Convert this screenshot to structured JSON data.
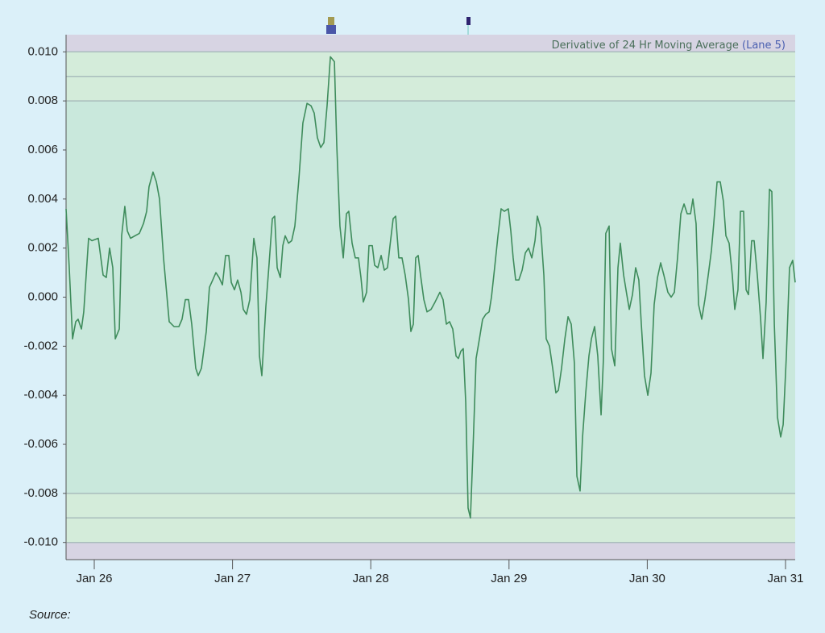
{
  "chart_data": {
    "type": "line",
    "title": "Derivative of 24 Hr Moving Average",
    "title_suffix": "(Lane 5)",
    "source_label": "Source:",
    "color": "#3f8c5c",
    "xlim": [
      25.796,
      31.07
    ],
    "xticks": [
      {
        "value": 26,
        "label": "Jan 26"
      },
      {
        "value": 27,
        "label": "Jan 27"
      },
      {
        "value": 28,
        "label": "Jan 28"
      },
      {
        "value": 29,
        "label": "Jan 29"
      },
      {
        "value": 30,
        "label": "Jan 30"
      },
      {
        "value": 31,
        "label": "Jan 31"
      }
    ],
    "ylim": [
      -0.0107,
      0.0107
    ],
    "yticks": [
      {
        "value": -0.01,
        "label": "-0.010"
      },
      -0.008,
      -0.006,
      -0.004,
      -0.002,
      {
        "value": 0,
        "label": "0.000"
      },
      0.002,
      0.004,
      0.006,
      0.008,
      {
        "value": 0.01,
        "label": "0.010"
      }
    ],
    "bands": [
      {
        "from": 0.01,
        "to": 0.0107,
        "color": "#d7d4e3"
      },
      {
        "from": -0.0107,
        "to": -0.01,
        "color": "#d7d4e3"
      },
      {
        "from": 0.008,
        "to": 0.01,
        "color": "#d4ecda"
      },
      {
        "from": -0.01,
        "to": -0.008,
        "color": "#d4ecda"
      },
      {
        "from": -0.008,
        "to": 0.008,
        "color": "#c9e8dc"
      }
    ],
    "limit_lines": [
      -0.01,
      -0.009,
      -0.008,
      0.008,
      0.009,
      0.01
    ],
    "x": [
      25.796,
      25.819,
      25.843,
      25.866,
      25.883,
      25.907,
      25.924,
      25.959,
      25.983,
      26.029,
      26.064,
      26.087,
      26.111,
      26.134,
      26.152,
      26.181,
      26.198,
      26.221,
      26.239,
      26.262,
      26.326,
      26.356,
      26.379,
      26.396,
      26.425,
      26.449,
      26.472,
      26.501,
      26.542,
      26.577,
      26.612,
      26.635,
      26.659,
      26.682,
      26.705,
      26.734,
      26.752,
      26.775,
      26.81,
      26.833,
      26.857,
      26.88,
      26.903,
      26.927,
      26.95,
      26.973,
      26.991,
      27.014,
      27.037,
      27.061,
      27.078,
      27.101,
      27.125,
      27.154,
      27.177,
      27.195,
      27.212,
      27.241,
      27.265,
      27.288,
      27.305,
      27.323,
      27.346,
      27.364,
      27.381,
      27.405,
      27.428,
      27.451,
      27.48,
      27.509,
      27.539,
      27.568,
      27.591,
      27.614,
      27.638,
      27.661,
      27.684,
      27.708,
      27.737,
      27.754,
      27.777,
      27.801,
      27.824,
      27.841,
      27.865,
      27.888,
      27.911,
      27.929,
      27.946,
      27.97,
      27.987,
      28.011,
      28.028,
      28.051,
      28.075,
      28.098,
      28.121,
      28.139,
      28.162,
      28.18,
      28.203,
      28.226,
      28.249,
      28.273,
      28.29,
      28.308,
      28.325,
      28.343,
      28.36,
      28.384,
      28.407,
      28.436,
      28.465,
      28.5,
      28.523,
      28.547,
      28.57,
      28.593,
      28.617,
      28.634,
      28.652,
      28.669,
      28.687,
      28.704,
      28.721,
      28.739,
      28.762,
      28.786,
      28.809,
      28.832,
      28.856,
      28.873,
      28.896,
      28.92,
      28.943,
      28.966,
      28.995,
      29.013,
      29.03,
      29.048,
      29.071,
      29.095,
      29.118,
      29.141,
      29.165,
      29.188,
      29.205,
      29.229,
      29.252,
      29.269,
      29.293,
      29.316,
      29.339,
      29.357,
      29.38,
      29.404,
      29.427,
      29.45,
      29.473,
      29.491,
      29.514,
      29.532,
      29.555,
      29.578,
      29.596,
      29.619,
      29.642,
      29.666,
      29.683,
      29.7,
      29.724,
      29.741,
      29.765,
      29.788,
      29.805,
      29.829,
      29.852,
      29.87,
      29.893,
      29.916,
      29.939,
      29.957,
      29.98,
      30.004,
      30.027,
      30.05,
      30.074,
      30.097,
      30.12,
      30.149,
      30.173,
      30.196,
      30.219,
      30.243,
      30.266,
      30.289,
      30.313,
      30.33,
      30.353,
      30.371,
      30.394,
      30.417,
      30.441,
      30.464,
      30.481,
      30.505,
      30.528,
      30.551,
      30.569,
      30.592,
      30.615,
      30.633,
      30.656,
      30.674,
      30.697,
      30.715,
      30.732,
      30.755,
      30.773,
      30.796,
      30.82,
      30.837,
      30.86,
      30.884,
      30.901,
      30.919,
      30.942,
      30.965,
      30.983,
      31.006,
      31.029,
      31.052,
      31.07
    ],
    "values": [
      0.0036,
      0.0012,
      -0.0017,
      -0.001,
      -0.0009,
      -0.0013,
      -0.0006,
      0.0024,
      0.0023,
      0.0024,
      0.0009,
      0.0008,
      0.002,
      0.0012,
      -0.0017,
      -0.0013,
      0.0025,
      0.0037,
      0.0027,
      0.0024,
      0.0026,
      0.003,
      0.0035,
      0.0045,
      0.0051,
      0.0047,
      0.004,
      0.0016,
      -0.001,
      -0.0012,
      -0.0012,
      -0.0009,
      -0.0001,
      -0.0001,
      -0.0011,
      -0.0029,
      -0.0032,
      -0.0029,
      -0.0014,
      0.0004,
      0.0007,
      0.001,
      0.0008,
      0.0005,
      0.0017,
      0.0017,
      0.0006,
      0.0003,
      0.0007,
      0.0002,
      -0.0005,
      -0.0007,
      -0.0001,
      0.0024,
      0.0016,
      -0.0024,
      -0.0032,
      -0.0004,
      0.0014,
      0.0032,
      0.0033,
      0.0012,
      0.0008,
      0.0021,
      0.0025,
      0.0022,
      0.0023,
      0.0029,
      0.0048,
      0.0071,
      0.0079,
      0.0078,
      0.0075,
      0.0065,
      0.0061,
      0.0063,
      0.0078,
      0.0098,
      0.0096,
      0.0062,
      0.0029,
      0.0016,
      0.0034,
      0.0035,
      0.0022,
      0.0016,
      0.0016,
      0.0008,
      -0.0002,
      0.0002,
      0.0021,
      0.0021,
      0.0013,
      0.0012,
      0.0017,
      0.0011,
      0.0012,
      0.0021,
      0.0032,
      0.0033,
      0.0016,
      0.0016,
      0.0009,
      -0.0001,
      -0.0014,
      -0.0011,
      0.0016,
      0.0017,
      0.0009,
      -0.0001,
      -0.0006,
      -0.0005,
      -0.0002,
      0.0002,
      -0.0001,
      -0.0011,
      -0.001,
      -0.0013,
      -0.0024,
      -0.0025,
      -0.0022,
      -0.0021,
      -0.0043,
      -0.0086,
      -0.009,
      -0.0063,
      -0.0025,
      -0.0017,
      -0.0009,
      -0.0007,
      -0.0006,
      0,
      0.0012,
      0.0025,
      0.0036,
      0.0035,
      0.0036,
      0.0027,
      0.0016,
      0.0007,
      0.0007,
      0.0011,
      0.0018,
      0.002,
      0.0016,
      0.0023,
      0.0033,
      0.0028,
      0.0009,
      -0.0017,
      -0.002,
      -0.0029,
      -0.0039,
      -0.0038,
      -0.0029,
      -0.0017,
      -0.0008,
      -0.0011,
      -0.0027,
      -0.0073,
      -0.0079,
      -0.0057,
      -0.0039,
      -0.0024,
      -0.0017,
      -0.0012,
      -0.0024,
      -0.0048,
      -0.0025,
      0.0026,
      0.0029,
      -0.0021,
      -0.0028,
      0.0012,
      0.0022,
      0.0009,
      0.0001,
      -0.0005,
      0.0001,
      0.0012,
      0.0007,
      -0.0011,
      -0.0032,
      -0.004,
      -0.0031,
      -0.0003,
      0.0008,
      0.0014,
      0.0009,
      0.0002,
      0,
      0.0002,
      0.0016,
      0.0034,
      0.0038,
      0.0034,
      0.0034,
      0.004,
      0.003,
      -0.0003,
      -0.0009,
      -0.0001,
      0.0009,
      0.0019,
      0.003,
      0.0047,
      0.0047,
      0.0039,
      0.0025,
      0.0022,
      0.0009,
      -0.0005,
      0.0003,
      0.0035,
      0.0035,
      0.0003,
      0.0001,
      0.0023,
      0.0023,
      0.0009,
      -0.0009,
      -0.0025,
      -0.0002,
      0.0044,
      0.0043,
      -0.0011,
      -0.0049,
      -0.0057,
      -0.0052,
      -0.0024,
      0.0012,
      0.0015,
      0.0006
    ]
  }
}
